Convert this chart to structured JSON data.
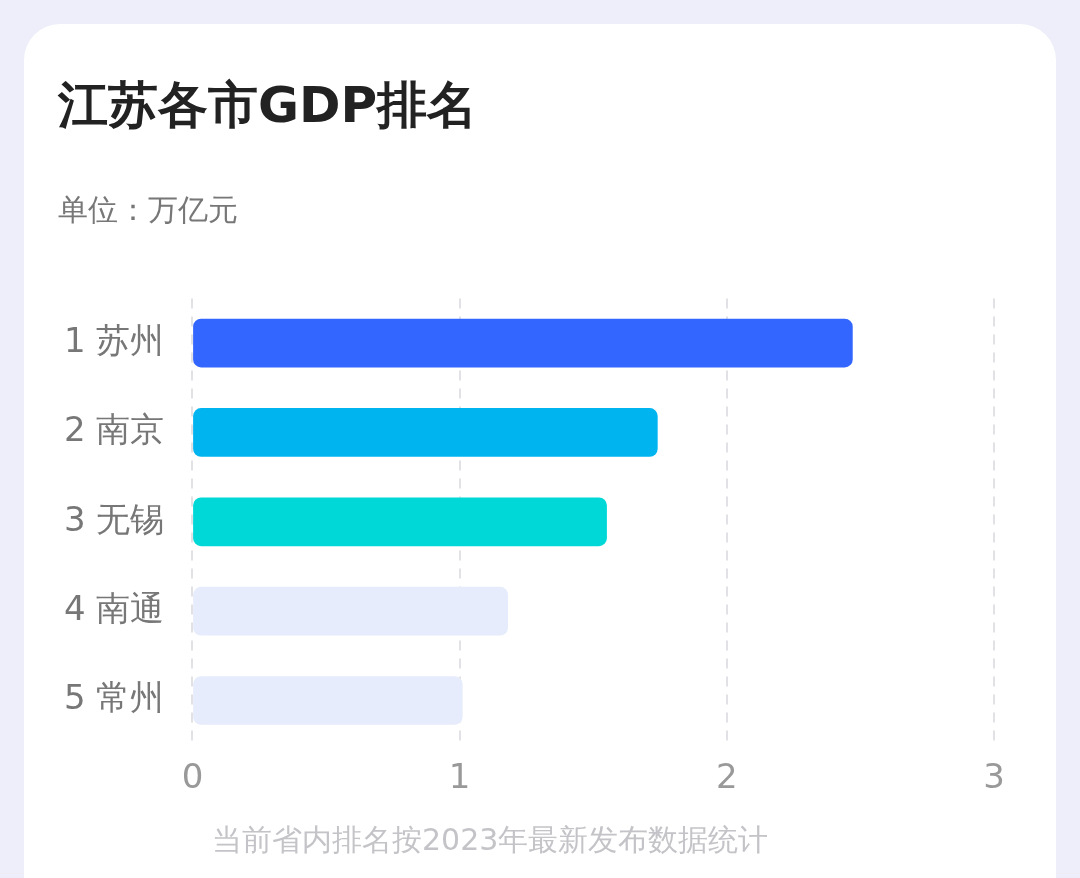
{
  "chart_data": {
    "type": "bar",
    "orientation": "horizontal",
    "title": "江苏各市GDP排名",
    "subtitle": "单位：万亿元",
    "categories": [
      "1 苏州",
      "2 南京",
      "3 无锡",
      "4 南通",
      "5 常州"
    ],
    "values": [
      2.47,
      1.74,
      1.55,
      1.18,
      1.01
    ],
    "colors": [
      "#3366ff",
      "#00b4f0",
      "#00d8d8",
      "#e6ecfb",
      "#e6ecfb"
    ],
    "xlim": [
      0,
      3
    ],
    "xticks": [
      0,
      1,
      2,
      3
    ],
    "grid": "x",
    "legend": false,
    "annotations": [
      "当前省内排名按2023年最新发布数据统计"
    ]
  }
}
